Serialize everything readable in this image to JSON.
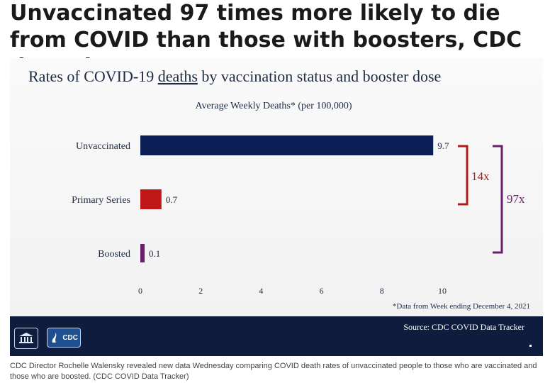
{
  "headline": "Unvaccinated 97 times more likely to die from COVID than those with boosters, CDC data shows",
  "caption": "CDC Director Rochelle Walensky revealed new data Wednesday comparing COVID death rates of unvaccinated people to those who are vaccinated and those who are boosted.  (CDC COVID Data Tracker)",
  "footer": {
    "source": "Source: CDC COVID Data Tracker",
    "logos": [
      "White House seal",
      "CDC"
    ],
    "cdc_logo_text": "CDC"
  },
  "chart_data": {
    "type": "bar",
    "orientation": "horizontal",
    "title_prefix": "Rates of COVID-19 ",
    "title_emphasis": "deaths",
    "title_suffix": " by vaccination status and booster dose",
    "subtitle": "Average Weekly Deaths* (per 100,000)",
    "categories": [
      "Unvaccinated",
      "Primary Series",
      "Boosted"
    ],
    "values": [
      9.7,
      0.7,
      0.1
    ],
    "value_labels": [
      "9.7",
      "0.7",
      "0.1"
    ],
    "bar_colors": [
      "#0b1f56",
      "#c01818",
      "#6b1e6e"
    ],
    "xlim": [
      0,
      10
    ],
    "xticks": [
      0,
      2,
      4,
      6,
      8,
      10
    ],
    "xtick_labels": [
      "0",
      "2",
      "4",
      "6",
      "8",
      "10"
    ],
    "footnote": "*Data from Week ending December 4, 2021",
    "annotations": [
      {
        "label": "14x",
        "from": "Unvaccinated",
        "to": "Primary Series",
        "color": "#b01c1c"
      },
      {
        "label": "97x",
        "from": "Unvaccinated",
        "to": "Boosted",
        "color": "#6b1e6e"
      }
    ]
  }
}
